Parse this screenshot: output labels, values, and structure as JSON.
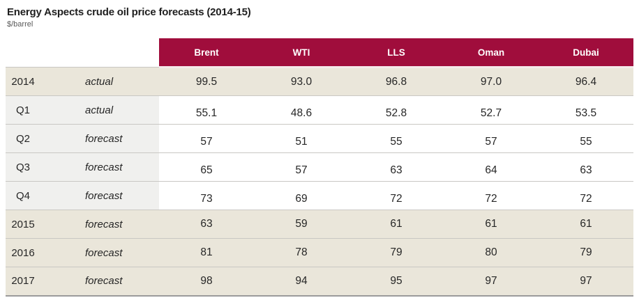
{
  "page": {
    "title": "Energy Aspects crude oil price forecasts (2014-15)",
    "subtitle": "$/barrel"
  },
  "colors": {
    "header_bg": "#A00D3C",
    "header_text": "#FFFFFF",
    "year_row_bg": "#EAE6DA",
    "quarter_label_bg": "#F0F0EE",
    "row_border": "#C9C7C3",
    "bottom_border": "#9B9B9B"
  },
  "table": {
    "columns": [
      "Brent",
      "WTI",
      "LLS",
      "Oman",
      "Dubai"
    ],
    "rows": [
      {
        "period": "2014",
        "status": "actual",
        "cells": [
          "99.5",
          "93.0",
          "96.8",
          "97.0",
          "96.4"
        ]
      },
      {
        "period": "Q1",
        "status": "actual",
        "cells": [
          "55.1",
          "48.6",
          "52.8",
          "52.7",
          "53.5"
        ]
      },
      {
        "period": "Q2",
        "status": "forecast",
        "cells": [
          "57",
          "51",
          "55",
          "57",
          "55"
        ]
      },
      {
        "period": "Q3",
        "status": "forecast",
        "cells": [
          "65",
          "57",
          "63",
          "64",
          "63"
        ]
      },
      {
        "period": "Q4",
        "status": "forecast",
        "cells": [
          "73",
          "69",
          "72",
          "72",
          "72"
        ]
      },
      {
        "period": "2015",
        "status": "forecast",
        "cells": [
          "63",
          "59",
          "61",
          "61",
          "61"
        ]
      },
      {
        "period": "2016",
        "status": "forecast",
        "cells": [
          "81",
          "78",
          "79",
          "80",
          "79"
        ]
      },
      {
        "period": "2017",
        "status": "forecast",
        "cells": [
          "98",
          "94",
          "95",
          "97",
          "97"
        ]
      }
    ]
  },
  "chart_data": {
    "type": "table",
    "title": "Energy Aspects crude oil price forecasts (2014-15)",
    "ylabel": "$/barrel",
    "columns": [
      "Brent",
      "WTI",
      "LLS",
      "Oman",
      "Dubai"
    ],
    "rows": [
      {
        "period": "2014",
        "status": "actual",
        "values": [
          99.5,
          93.0,
          96.8,
          97.0,
          96.4
        ]
      },
      {
        "period": "Q1",
        "status": "actual",
        "values": [
          55.1,
          48.6,
          52.8,
          52.7,
          53.5
        ]
      },
      {
        "period": "Q2",
        "status": "forecast",
        "values": [
          57,
          51,
          55,
          57,
          55
        ]
      },
      {
        "period": "Q3",
        "status": "forecast",
        "values": [
          65,
          57,
          63,
          64,
          63
        ]
      },
      {
        "period": "Q4",
        "status": "forecast",
        "values": [
          73,
          69,
          72,
          72,
          72
        ]
      },
      {
        "period": "2015",
        "status": "forecast",
        "values": [
          63,
          59,
          61,
          61,
          61
        ]
      },
      {
        "period": "2016",
        "status": "forecast",
        "values": [
          81,
          78,
          79,
          80,
          79
        ]
      },
      {
        "period": "2017",
        "status": "forecast",
        "values": [
          98,
          94,
          95,
          97,
          97
        ]
      }
    ]
  }
}
